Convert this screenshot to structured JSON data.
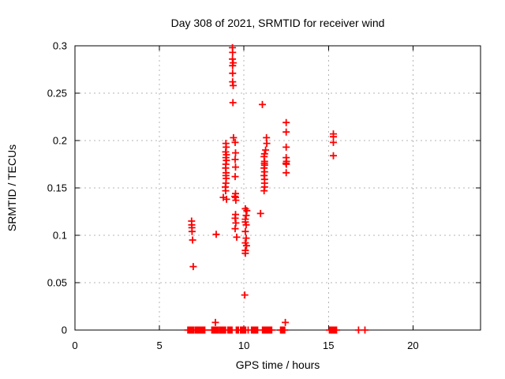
{
  "chart_data": {
    "type": "scatter",
    "title": "Day 308 of 2021, SRMTID for receiver wind",
    "xlabel": "GPS time / hours",
    "ylabel": "SRMTID / TECUs",
    "xlim": [
      0,
      24
    ],
    "ylim": [
      0,
      0.3
    ],
    "xticks": [
      0,
      5,
      10,
      15,
      20
    ],
    "xtick_labels": [
      "0",
      "5",
      "10",
      "15",
      "20"
    ],
    "yticks": [
      0,
      0.05,
      0.1,
      0.15,
      0.2,
      0.25,
      0.3
    ],
    "ytick_labels": [
      "0",
      "0.05",
      "0.1",
      "0.15",
      "0.2",
      "0.25",
      "0.3"
    ],
    "grid": true,
    "legend_position": "none",
    "marker": "plus",
    "colors": {
      "marker": "#ff0000",
      "grid": "#b4b4b4",
      "axis": "#000000",
      "background": "#ffffff",
      "text": "#000000"
    },
    "series": [
      {
        "name": "SRMTID",
        "points": [
          [
            6.9,
            0.115
          ],
          [
            6.91,
            0.111
          ],
          [
            6.92,
            0.108
          ],
          [
            6.93,
            0.104
          ],
          [
            6.96,
            0.095
          ],
          [
            7.0,
            0.067
          ],
          [
            8.31,
            0.008
          ],
          [
            8.36,
            0.101
          ],
          [
            8.78,
            0.14
          ],
          [
            8.9,
            0.151
          ],
          [
            8.92,
            0.188
          ],
          [
            8.92,
            0.171
          ],
          [
            8.92,
            0.147
          ],
          [
            8.93,
            0.197
          ],
          [
            8.93,
            0.182
          ],
          [
            8.93,
            0.175
          ],
          [
            8.93,
            0.163
          ],
          [
            8.93,
            0.155
          ],
          [
            8.94,
            0.166
          ],
          [
            8.95,
            0.193
          ],
          [
            8.95,
            0.16
          ],
          [
            8.96,
            0.185
          ],
          [
            8.96,
            0.179
          ],
          [
            8.97,
            0.138
          ],
          [
            9.32,
            0.298
          ],
          [
            9.33,
            0.293
          ],
          [
            9.32,
            0.286
          ],
          [
            9.36,
            0.282
          ],
          [
            9.33,
            0.279
          ],
          [
            9.33,
            0.271
          ],
          [
            9.33,
            0.262
          ],
          [
            9.36,
            0.258
          ],
          [
            9.35,
            0.24
          ],
          [
            9.38,
            0.203
          ],
          [
            9.48,
            0.198
          ],
          [
            9.5,
            0.187
          ],
          [
            9.48,
            0.18
          ],
          [
            9.5,
            0.172
          ],
          [
            9.48,
            0.162
          ],
          [
            9.5,
            0.144
          ],
          [
            9.46,
            0.141
          ],
          [
            9.5,
            0.14
          ],
          [
            9.52,
            0.137
          ],
          [
            9.5,
            0.122
          ],
          [
            9.48,
            0.118
          ],
          [
            9.52,
            0.113
          ],
          [
            9.48,
            0.107
          ],
          [
            9.57,
            0.098
          ],
          [
            10.05,
            0.037
          ],
          [
            10.08,
            0.128
          ],
          [
            10.17,
            0.126
          ],
          [
            10.13,
            0.121
          ],
          [
            10.08,
            0.117
          ],
          [
            10.08,
            0.114
          ],
          [
            10.13,
            0.111
          ],
          [
            10.08,
            0.104
          ],
          [
            10.13,
            0.097
          ],
          [
            10.08,
            0.092
          ],
          [
            10.15,
            0.089
          ],
          [
            10.08,
            0.084
          ],
          [
            10.08,
            0.081
          ],
          [
            10.98,
            0.123
          ],
          [
            11.09,
            0.238
          ],
          [
            11.33,
            0.203
          ],
          [
            11.35,
            0.197
          ],
          [
            11.28,
            0.19
          ],
          [
            11.22,
            0.186
          ],
          [
            11.19,
            0.183
          ],
          [
            11.22,
            0.178
          ],
          [
            11.21,
            0.176
          ],
          [
            11.22,
            0.174
          ],
          [
            11.19,
            0.171
          ],
          [
            11.22,
            0.167
          ],
          [
            11.19,
            0.163
          ],
          [
            11.22,
            0.159
          ],
          [
            11.22,
            0.155
          ],
          [
            11.22,
            0.151
          ],
          [
            11.19,
            0.147
          ],
          [
            12.45,
            0.008
          ],
          [
            12.5,
            0.219
          ],
          [
            12.5,
            0.209
          ],
          [
            12.5,
            0.193
          ],
          [
            12.5,
            0.182
          ],
          [
            12.52,
            0.178
          ],
          [
            12.49,
            0.176
          ],
          [
            12.51,
            0.175
          ],
          [
            12.5,
            0.166
          ],
          [
            15.29,
            0.207
          ],
          [
            15.29,
            0.204
          ],
          [
            15.29,
            0.198
          ],
          [
            15.29,
            0.184
          ],
          [
            6.68,
            0
          ],
          [
            6.74,
            0
          ],
          [
            6.8,
            0
          ],
          [
            6.86,
            0
          ],
          [
            6.92,
            0
          ],
          [
            6.98,
            0
          ],
          [
            7.04,
            0
          ],
          [
            7.14,
            0
          ],
          [
            7.2,
            0
          ],
          [
            7.26,
            0
          ],
          [
            7.32,
            0
          ],
          [
            7.38,
            0
          ],
          [
            7.44,
            0
          ],
          [
            7.5,
            0
          ],
          [
            7.56,
            0
          ],
          [
            7.62,
            0
          ],
          [
            7.68,
            0
          ],
          [
            8.1,
            0
          ],
          [
            8.16,
            0
          ],
          [
            8.22,
            0
          ],
          [
            8.28,
            0
          ],
          [
            8.34,
            0
          ],
          [
            8.4,
            0
          ],
          [
            8.46,
            0
          ],
          [
            8.55,
            0
          ],
          [
            8.61,
            0
          ],
          [
            8.67,
            0
          ],
          [
            8.73,
            0
          ],
          [
            8.79,
            0
          ],
          [
            8.85,
            0
          ],
          [
            8.91,
            0
          ],
          [
            9.05,
            0
          ],
          [
            9.11,
            0
          ],
          [
            9.17,
            0
          ],
          [
            9.23,
            0
          ],
          [
            9.29,
            0
          ],
          [
            9.55,
            0
          ],
          [
            9.61,
            0
          ],
          [
            9.67,
            0
          ],
          [
            9.8,
            0
          ],
          [
            9.86,
            0
          ],
          [
            9.92,
            0
          ],
          [
            9.98,
            0
          ],
          [
            10.04,
            0
          ],
          [
            10.1,
            0
          ],
          [
            10.25,
            0
          ],
          [
            10.45,
            0
          ],
          [
            10.51,
            0
          ],
          [
            10.57,
            0
          ],
          [
            10.63,
            0
          ],
          [
            10.69,
            0
          ],
          [
            10.75,
            0
          ],
          [
            10.81,
            0
          ],
          [
            11.1,
            0
          ],
          [
            11.16,
            0
          ],
          [
            11.22,
            0
          ],
          [
            11.28,
            0
          ],
          [
            11.34,
            0
          ],
          [
            11.4,
            0
          ],
          [
            11.46,
            0
          ],
          [
            11.52,
            0
          ],
          [
            11.58,
            0
          ],
          [
            11.64,
            0
          ],
          [
            12.17,
            0
          ],
          [
            12.23,
            0
          ],
          [
            12.29,
            0
          ],
          [
            12.35,
            0
          ],
          [
            12.41,
            0
          ],
          [
            15.06,
            0
          ],
          [
            15.12,
            0
          ],
          [
            15.18,
            0
          ],
          [
            15.24,
            0
          ],
          [
            15.3,
            0
          ],
          [
            15.36,
            0
          ],
          [
            15.42,
            0
          ],
          [
            15.48,
            0
          ],
          [
            16.78,
            0
          ],
          [
            17.16,
            0
          ]
        ]
      }
    ]
  }
}
